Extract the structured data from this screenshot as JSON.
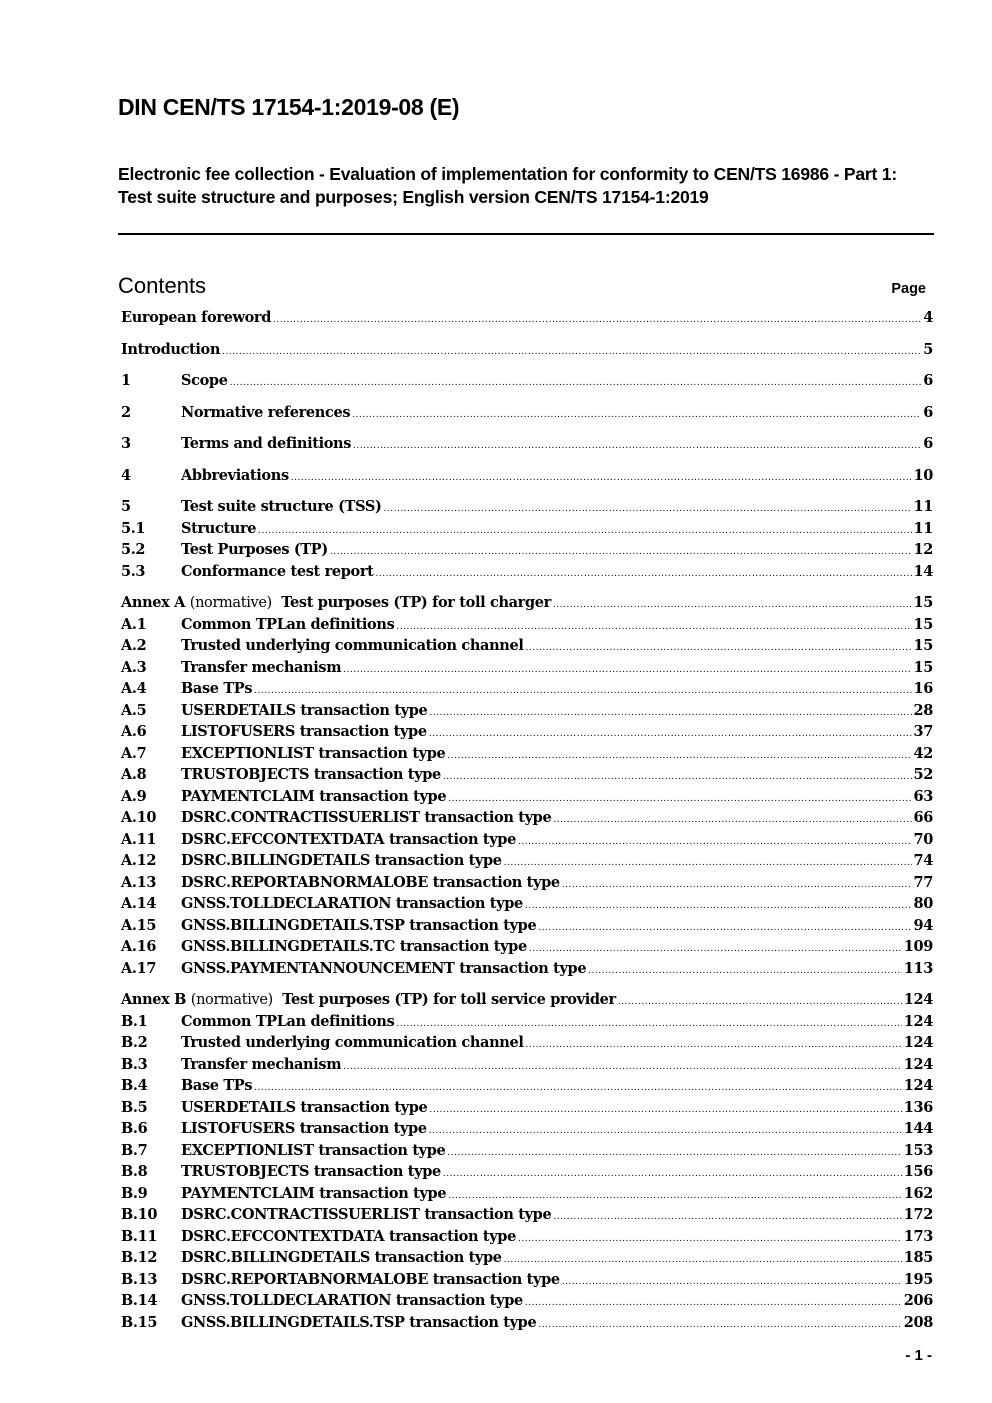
{
  "header": {
    "title": "DIN CEN/TS 17154-1:2019-08 (E)",
    "subtitle": "Electronic fee collection - Evaluation of implementation for conformity to CEN/TS 16986 - Part 1: Test suite structure and purposes; English version CEN/TS 17154-1:2019"
  },
  "contents": {
    "heading": "Contents",
    "page_label": "Page",
    "entries": [
      {
        "num": "",
        "title": "European foreword",
        "page": "4",
        "major": true
      },
      {
        "num": "",
        "title": "Introduction",
        "page": "5",
        "major": true
      },
      {
        "num": "1",
        "title": "Scope",
        "page": "6",
        "major": true
      },
      {
        "num": "2",
        "title": "Normative references",
        "page": "6",
        "major": true
      },
      {
        "num": "3",
        "title": "Terms and definitions",
        "page": "6",
        "major": true
      },
      {
        "num": "4",
        "title": "Abbreviations",
        "page": "10",
        "major": true
      },
      {
        "num": "5",
        "title": "Test suite structure (TSS)",
        "page": "11",
        "major": true
      },
      {
        "num": "5.1",
        "title": "Structure",
        "page": "11"
      },
      {
        "num": "5.2",
        "title": "Test Purposes (TP)",
        "page": "12"
      },
      {
        "num": "5.3",
        "title": "Conformance test report",
        "page": "14"
      },
      {
        "annex": "Annex A",
        "note": "(normative)",
        "title": "Test purposes (TP) for toll charger",
        "page": "15",
        "major": true
      },
      {
        "num": "A.1",
        "title": "Common TPLan definitions",
        "page": "15"
      },
      {
        "num": "A.2",
        "title": "Trusted underlying communication channel",
        "page": "15"
      },
      {
        "num": "A.3",
        "title": "Transfer mechanism",
        "page": "15"
      },
      {
        "num": "A.4",
        "title": "Base TPs",
        "page": "16"
      },
      {
        "num": "A.5",
        "title": "USERDETAILS transaction type",
        "page": "28"
      },
      {
        "num": "A.6",
        "title": "LISTOFUSERS transaction type",
        "page": "37"
      },
      {
        "num": "A.7",
        "title": "EXCEPTIONLIST transaction type",
        "page": "42"
      },
      {
        "num": "A.8",
        "title": "TRUSTOBJECTS transaction type",
        "page": "52"
      },
      {
        "num": "A.9",
        "title": "PAYMENTCLAIM transaction type",
        "page": "63"
      },
      {
        "num": "A.10",
        "title": "DSRC.CONTRACTISSUERLIST transaction type",
        "page": "66"
      },
      {
        "num": "A.11",
        "title": "DSRC.EFCCONTEXTDATA transaction type",
        "page": "70"
      },
      {
        "num": "A.12",
        "title": "DSRC.BILLINGDETAILS transaction type",
        "page": "74"
      },
      {
        "num": "A.13",
        "title": "DSRC.REPORTABNORMALOBE transaction type",
        "page": "77"
      },
      {
        "num": "A.14",
        "title": "GNSS.TOLLDECLARATION transaction type",
        "page": "80"
      },
      {
        "num": "A.15",
        "title": "GNSS.BILLINGDETAILS.TSP transaction type",
        "page": "94"
      },
      {
        "num": "A.16",
        "title": "GNSS.BILLINGDETAILS.TC transaction type",
        "page": "109"
      },
      {
        "num": "A.17",
        "title": "GNSS.PAYMENTANNOUNCEMENT transaction type",
        "page": "113"
      },
      {
        "annex": "Annex B",
        "note": "(normative)",
        "title": "Test purposes (TP) for toll service provider",
        "page": "124",
        "major": true
      },
      {
        "num": "B.1",
        "title": "Common TPLan definitions",
        "page": "124"
      },
      {
        "num": "B.2",
        "title": "Trusted underlying communication channel",
        "page": "124"
      },
      {
        "num": "B.3",
        "title": "Transfer mechanism",
        "page": "124"
      },
      {
        "num": "B.4",
        "title": "Base TPs",
        "page": "124"
      },
      {
        "num": "B.5",
        "title": "USERDETAILS transaction type",
        "page": "136"
      },
      {
        "num": "B.6",
        "title": "LISTOFUSERS transaction type",
        "page": "144"
      },
      {
        "num": "B.7",
        "title": "EXCEPTIONLIST transaction type",
        "page": "153"
      },
      {
        "num": "B.8",
        "title": "TRUSTOBJECTS transaction type",
        "page": "156"
      },
      {
        "num": "B.9",
        "title": "PAYMENTCLAIM transaction type",
        "page": "162"
      },
      {
        "num": "B.10",
        "title": "DSRC.CONTRACTISSUERLIST transaction type",
        "page": "172"
      },
      {
        "num": "B.11",
        "title": "DSRC.EFCCONTEXTDATA transaction type",
        "page": "173"
      },
      {
        "num": "B.12",
        "title": "DSRC.BILLINGDETAILS transaction type",
        "page": "185"
      },
      {
        "num": "B.13",
        "title": "DSRC.REPORTABNORMALOBE transaction type",
        "page": "195"
      },
      {
        "num": "B.14",
        "title": "GNSS.TOLLDECLARATION transaction type",
        "page": "206"
      },
      {
        "num": "B.15",
        "title": "GNSS.BILLINGDETAILS.TSP transaction type",
        "page": "208"
      }
    ]
  },
  "footer": {
    "page_number": "- 1 -"
  }
}
